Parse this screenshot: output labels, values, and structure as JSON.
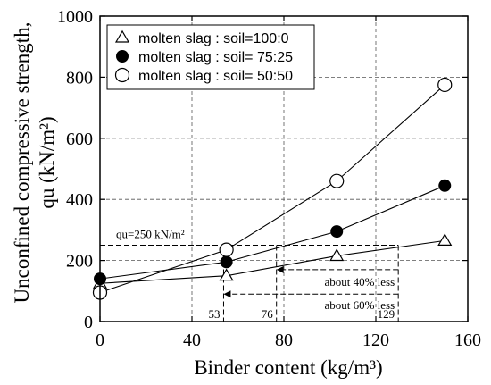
{
  "chart_data": {
    "type": "line",
    "xlabel": "Binder content (kg/m³)",
    "ylabel_line1": "Unconfined compressive strength,",
    "ylabel_line2": "qu (kN/m²)",
    "xlim": [
      0,
      160
    ],
    "ylim": [
      0,
      1000
    ],
    "xticks": [
      0,
      40,
      80,
      120,
      160
    ],
    "yticks": [
      0,
      200,
      400,
      600,
      800,
      1000
    ],
    "grid": true,
    "legend_position": "top-left",
    "series": [
      {
        "name": "molten slag : soil=100:0",
        "marker": "triangle",
        "x": [
          0,
          55,
          103,
          150
        ],
        "y": [
          125,
          150,
          215,
          265
        ]
      },
      {
        "name": "molten slag : soil= 75:25",
        "marker": "filled-circle",
        "x": [
          0,
          55,
          103,
          150
        ],
        "y": [
          140,
          195,
          295,
          445
        ]
      },
      {
        "name": "molten slag : soil= 50:50",
        "marker": "open-circle",
        "x": [
          0,
          55,
          103,
          150
        ],
        "y": [
          95,
          235,
          460,
          775
        ]
      }
    ],
    "annotations": {
      "threshold_label": "qu=250 kN/m²",
      "threshold_value": 250,
      "less40_label": "about 40% less",
      "less60_label": "about 60% less",
      "marker_53": "53",
      "marker_76": "76",
      "marker_129": "129",
      "x53": 53,
      "x76": 76,
      "x129": 129
    }
  }
}
